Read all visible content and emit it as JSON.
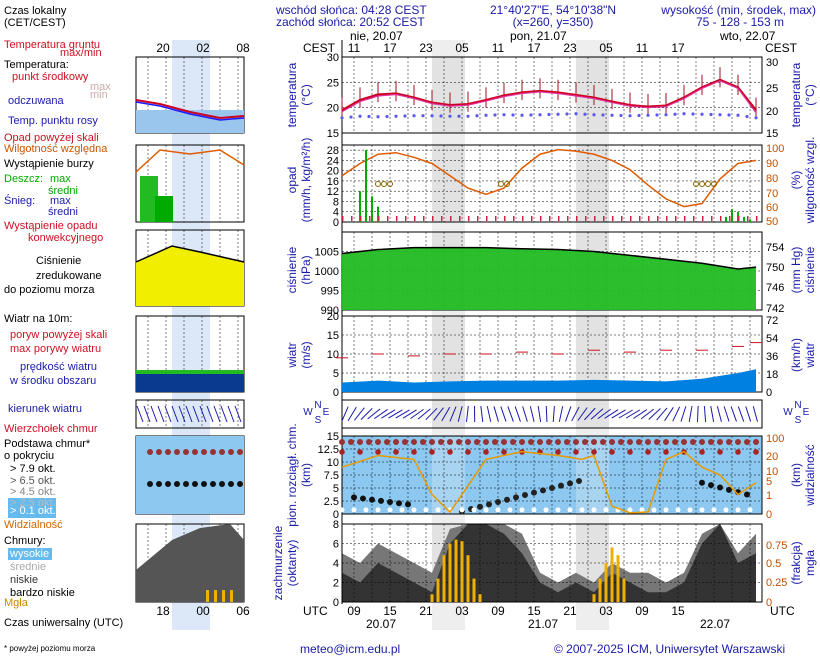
{
  "header": {
    "sunrise": "wschód słońca: 04:28 CEST",
    "sunset": "zachód słońca: 20:52 CEST",
    "coords": "21°40'27\"E, 54°10'38\"N",
    "grid": "(x=260, y=350)",
    "elev_title": "wysokość (min, środek, max)",
    "elev_values": "75 - 128 - 153 m"
  },
  "time": {
    "cest_label": "CEST",
    "utc_label": "UTC",
    "dates": [
      "nie, 20.07",
      "pon, 21.07",
      "wto, 22.07"
    ],
    "cest_ticks": [
      "11",
      "17",
      "23",
      "05",
      "11",
      "17",
      "23",
      "05",
      "11",
      "17"
    ],
    "utc_ticks": [
      "09",
      "15",
      "21",
      "03",
      "09",
      "15",
      "21",
      "03",
      "09",
      "15"
    ],
    "utc_dates": [
      "20.07",
      "21.07",
      "22.07"
    ],
    "legend_top_ticks": [
      "20",
      "02",
      "08"
    ],
    "legend_bottom_ticks": [
      "18",
      "00",
      "06"
    ]
  },
  "legend": {
    "local_time": "Czas lokalny",
    "local_time2": "(CET/CEST)",
    "soil_temp": "Temperatura gruntu",
    "maxmin": "max/min",
    "temperature": "Temperatura:",
    "mid_point": "punkt środkowy",
    "max": "max",
    "min": "min",
    "felt": "odczuwana",
    "dew": "Temp. punktu rosy",
    "precip_over": "Opad powyżej skali",
    "humidity": "Wilgotność względna",
    "storm": "Wystąpienie burzy",
    "rain": "Deszcz:",
    "snow": "Śnieg:",
    "mean": "średni",
    "conv": "Wystąpienie opadu",
    "conv2": "konwekcyjnego",
    "pressure1": "Ciśnienie",
    "pressure2": "zredukowane",
    "pressure3": "do poziomu morza",
    "wind10": "Wiatr na 10m:",
    "gust_over": "poryw powyżej skali",
    "gust_max": "max porywy wiatru",
    "wind_speed1": "prędkość wiatru",
    "wind_speed2": "w środku obszaru",
    "wind_dir": "kierunek wiatru",
    "cloud_top": "Wierzchołek chmur",
    "cloud_base1": "Podstawa chmur*",
    "cloud_base2": "o pokryciu",
    "okt79": "> 7.9 okt.",
    "okt65": "> 6.5 okt.",
    "okt45": "> 4.5 okt.",
    "okt25": "> 2.5 okt.",
    "okt01": "> 0.1 okt.",
    "visibility": "Widzialność",
    "clouds": "Chmury:",
    "high": "wysokie",
    "middle": "średnie",
    "low": "niskie",
    "very_low": "bardzo niskie",
    "fog": "Mgła",
    "utc": "Czas uniwersalny (UTC)",
    "footnote": "* powyżej poziomu morza"
  },
  "axes": {
    "temp_label": "temperatura",
    "temp_unit": "(°C)",
    "precip_label": "opad",
    "precip_unit": "(mm/h, kg/m²/h)",
    "hum_label": "wilgotność wzgl.",
    "hum_unit": "(%)",
    "pres_label": "ciśnienie",
    "pres_unit": "(hPa)",
    "pres_unit_r": "(mm Hg)",
    "wind_label": "wiatr",
    "wind_unit": "(m/s)",
    "wind_unit_r": "(km/h)",
    "cloudbase_label": "pion. rozciągł. chm.",
    "cloudbase_unit": "(km)",
    "vis_label": "widzialność",
    "vis_unit": "(km)",
    "cover_label": "zachmurzenie",
    "cover_unit": "(oktanty)",
    "fog_label": "mgła",
    "fog_unit": "(frakcja)",
    "compass": [
      "N",
      "W",
      "E",
      "S"
    ]
  },
  "footer": {
    "email": "meteo@icm.edu.pl",
    "copyright": "© 2007-2025 ICM, Uniwersytet Warszawski"
  },
  "colors": {
    "temp": "#cc0022",
    "felt": "#1a1aff",
    "dew": "#5a5aee",
    "humidity": "#e05a00",
    "pressure": "#00aa00",
    "wind": "#0055dd",
    "visibility": "#e89a00",
    "fog": "#f0b000",
    "night": "#e2e2e2",
    "plot_bg_blue": "#8cc8f0"
  },
  "chart_data": [
    {
      "type": "line",
      "name_ref": "temperature",
      "x_hours_from_start": [
        0,
        3,
        6,
        9,
        12,
        15,
        18,
        21,
        24,
        27,
        30,
        33,
        36,
        39,
        42,
        45,
        48,
        51,
        54,
        57,
        60,
        63,
        66,
        69
      ],
      "ylim": [
        15,
        30
      ],
      "yticks": [
        15,
        20,
        25,
        30
      ],
      "series": [
        {
          "name": "punkt środkowy",
          "values": [
            19.5,
            21.5,
            22.6,
            22.8,
            22,
            21,
            20.5,
            20.7,
            21.5,
            22.4,
            23,
            23.3,
            23,
            22.5,
            22,
            21.2,
            20.5,
            20.2,
            20.4,
            22,
            24,
            25.5,
            24,
            19.5
          ]
        },
        {
          "name": "odczuwana",
          "values": [
            19.2,
            21.2,
            22.3,
            22.6,
            21.8,
            20.8,
            20.3,
            20.5,
            21.3,
            22.2,
            22.8,
            23.1,
            22.8,
            22.3,
            21.8,
            21,
            20.3,
            20,
            20.2,
            21.8,
            23.8,
            25.3,
            23.8,
            19
          ]
        },
        {
          "name": "Temp. punktu rosy",
          "values": [
            18,
            18.3,
            18.2,
            18.3,
            18.4,
            18.4,
            18.3,
            18.3,
            18.5,
            18.6,
            18.5,
            18.6,
            18.7,
            18.8,
            18.6,
            18.5,
            18.4,
            18.5,
            18.6,
            18.8,
            18.7,
            18.6,
            18.5,
            18
          ]
        }
      ]
    },
    {
      "type": "line",
      "name_ref": "humidity",
      "x_hours_from_start": [
        0,
        3,
        6,
        9,
        12,
        15,
        18,
        21,
        24,
        27,
        30,
        33,
        36,
        39,
        42,
        45,
        48,
        51,
        54,
        57,
        60,
        63,
        66,
        69
      ],
      "ylim": [
        50,
        100
      ],
      "series": [
        {
          "name": "Wilgotność względna",
          "values": [
            80,
            88,
            94,
            95,
            92,
            88,
            80,
            72,
            68,
            72,
            85,
            94,
            97,
            96,
            94,
            90,
            84,
            74,
            65,
            60,
            62,
            78,
            88,
            90
          ]
        }
      ]
    },
    {
      "type": "bar",
      "name_ref": "precipitation",
      "x_hours_from_start": [
        3,
        4,
        5,
        6,
        64,
        65,
        66,
        67,
        68
      ],
      "ylim": [
        0,
        30
      ],
      "values": [
        12,
        28,
        10,
        6,
        2,
        5,
        4,
        2,
        1
      ]
    },
    {
      "type": "area",
      "name_ref": "pressure",
      "x_hours_from_start": [
        0,
        6,
        12,
        18,
        24,
        30,
        36,
        42,
        48,
        54,
        60,
        66,
        69
      ],
      "ylim": [
        990,
        1010
      ],
      "yticks": [
        990,
        995,
        1000,
        1005
      ],
      "values": [
        1004.5,
        1005.5,
        1006,
        1006,
        1006,
        1005.7,
        1005.5,
        1005,
        1004,
        1003,
        1002,
        1000.5,
        1001
      ]
    },
    {
      "type": "area",
      "name_ref": "wind",
      "x_hours_from_start": [
        0,
        6,
        12,
        18,
        24,
        30,
        36,
        42,
        48,
        54,
        60,
        66,
        69
      ],
      "ylim": [
        0,
        20
      ],
      "yticks": [
        0,
        5,
        10,
        15,
        20
      ],
      "series": [
        {
          "name": "prędkość wiatru",
          "values": [
            2.5,
            3,
            2.5,
            2.8,
            3,
            3,
            3,
            3.2,
            3,
            2.8,
            3.5,
            5,
            6
          ]
        },
        {
          "name": "max porywy wiatru",
          "values": [
            9,
            10,
            9.5,
            10,
            10,
            10.5,
            10,
            11,
            10.5,
            11,
            11,
            12,
            13
          ]
        }
      ]
    },
    {
      "type": "line",
      "name_ref": "visibility",
      "x_hours_from_start": [
        0,
        6,
        12,
        15,
        18,
        24,
        30,
        36,
        40,
        42,
        45,
        48,
        51,
        54,
        57,
        60,
        63,
        66,
        69
      ],
      "ylim": [
        0,
        20
      ],
      "values": [
        12,
        15,
        14,
        5,
        0.5,
        14,
        16,
        15,
        14,
        15,
        2,
        0.3,
        0.5,
        14,
        16,
        12,
        10,
        5,
        8
      ]
    },
    {
      "type": "bar",
      "name_ref": "fog",
      "x_hours_from_start": [
        15,
        16,
        17,
        18,
        19,
        20,
        21,
        22,
        23,
        42,
        43,
        44,
        45,
        46,
        47
      ],
      "ylim": [
        0,
        1
      ],
      "values": [
        0.1,
        0.3,
        0.6,
        0.75,
        0.8,
        0.78,
        0.6,
        0.3,
        0.1,
        0.1,
        0.3,
        0.5,
        0.7,
        0.6,
        0.3
      ]
    }
  ]
}
